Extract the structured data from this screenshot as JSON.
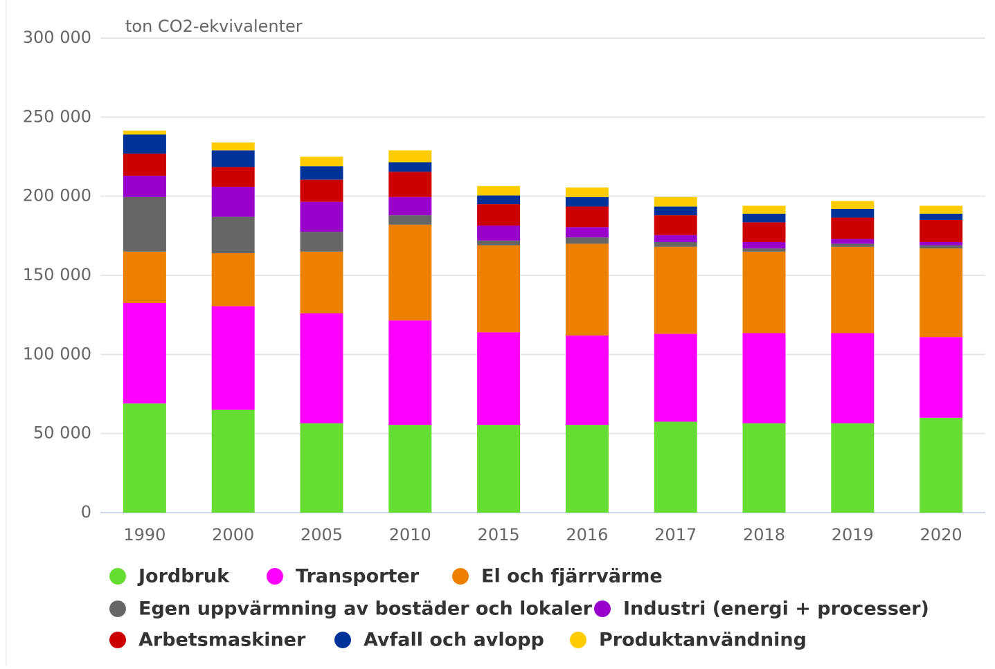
{
  "chart_data": {
    "type": "stacked_bar",
    "y_label": "ton CO2-ekvivalenter",
    "categories": [
      "1990",
      "2000",
      "2005",
      "2010",
      "2015",
      "2016",
      "2017",
      "2018",
      "2019",
      "2020"
    ],
    "series": [
      {
        "name": "Jordbruk",
        "color": "#66dd33",
        "values": [
          69000,
          65000,
          56500,
          55500,
          55500,
          55500,
          57500,
          56500,
          56500,
          60000
        ]
      },
      {
        "name": "Transporter",
        "color": "#ff00ff",
        "values": [
          63500,
          65500,
          69500,
          66000,
          58500,
          56500,
          55500,
          57000,
          57000,
          51000
        ]
      },
      {
        "name": "El och fjärrvärme",
        "color": "#ee8000",
        "values": [
          32500,
          33500,
          39000,
          60500,
          55000,
          58000,
          55000,
          51500,
          54500,
          56000
        ]
      },
      {
        "name": "Egen uppvärmning av bostäder och lokaler",
        "color": "#666666",
        "values": [
          34500,
          23000,
          12500,
          6000,
          3000,
          4000,
          3000,
          2000,
          2000,
          2000
        ]
      },
      {
        "name": "Industri (energi + processer)",
        "color": "#9900cc",
        "values": [
          13500,
          19000,
          19000,
          11500,
          9500,
          6500,
          4500,
          4000,
          3000,
          2000
        ]
      },
      {
        "name": "Arbetsmaskiner",
        "color": "#cc0000",
        "values": [
          14000,
          12500,
          14000,
          16000,
          13500,
          13000,
          12500,
          12500,
          13500,
          14000
        ]
      },
      {
        "name": "Avfall och avlopp",
        "color": "#003399",
        "values": [
          12000,
          10500,
          8500,
          6000,
          5500,
          6000,
          5500,
          5500,
          5500,
          4000
        ]
      },
      {
        "name": "Produktanvändning",
        "color": "#ffcc00",
        "values": [
          2500,
          5000,
          6000,
          7500,
          6000,
          6000,
          6000,
          5000,
          5000,
          5000
        ]
      }
    ],
    "ylim": [
      0,
      300000
    ],
    "yticks": [
      0,
      {
        "value": 50000,
        "label": "50 000"
      },
      {
        "value": 100000,
        "label": "100 000"
      },
      {
        "value": 150000,
        "label": "150 000"
      },
      {
        "value": 200000,
        "label": "200 000"
      },
      {
        "value": 250000,
        "label": "250 000"
      },
      {
        "value": 300000,
        "label": "300 000"
      }
    ],
    "grid": true
  }
}
